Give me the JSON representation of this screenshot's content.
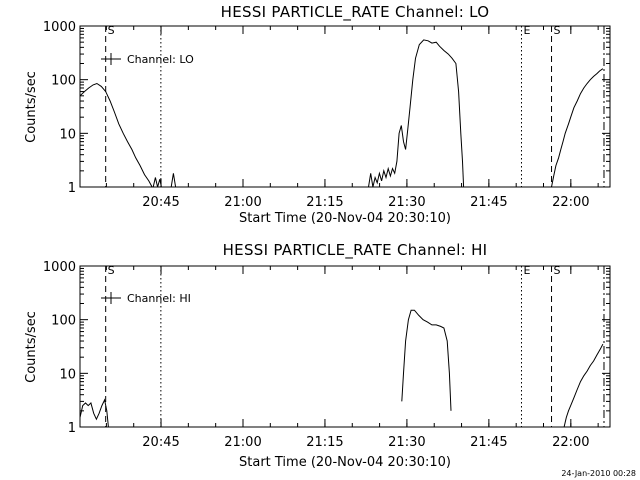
{
  "footer": {
    "date": "24-Jan-2010 00:28"
  },
  "chart_data": [
    {
      "type": "line",
      "title": "HESSI PARTICLE_RATE Channel: LO",
      "xlabel": "Start Time (20-Nov-04 20:30:10)",
      "ylabel": "Counts/sec",
      "yscale": "log",
      "ylim": [
        1,
        1000
      ],
      "xlim_minutes": [
        0,
        97
      ],
      "xticks": [
        {
          "label": "20:45",
          "min": 14.83
        },
        {
          "label": "21:00",
          "min": 29.83
        },
        {
          "label": "21:15",
          "min": 44.83
        },
        {
          "label": "21:30",
          "min": 59.83
        },
        {
          "label": "21:45",
          "min": 74.83
        },
        {
          "label": "22:00",
          "min": 89.83
        }
      ],
      "yticks": [
        {
          "label": "1",
          "value": 1
        },
        {
          "label": "10",
          "value": 10
        },
        {
          "label": "100",
          "value": 100
        },
        {
          "label": "1000",
          "value": 1000
        }
      ],
      "legend": "Channel: LO",
      "vlines": [
        {
          "min": 4.7,
          "style": "dashed",
          "label": "S"
        },
        {
          "min": 14.8,
          "style": "dotted",
          "label": ""
        },
        {
          "min": 80.8,
          "style": "dotted",
          "label": "E"
        },
        {
          "min": 86.3,
          "style": "dashed",
          "label": "S"
        },
        {
          "min": 95.9,
          "style": "dashdot",
          "label": ""
        }
      ],
      "segments": [
        [
          [
            0,
            50
          ],
          [
            0.8,
            60
          ],
          [
            1.6,
            70
          ],
          [
            2.4,
            80
          ],
          [
            3.1,
            85
          ],
          [
            3.9,
            75
          ],
          [
            4.7,
            60
          ],
          [
            5.5,
            40
          ],
          [
            6.3,
            25
          ],
          [
            7.1,
            15
          ],
          [
            7.9,
            10
          ],
          [
            8.7,
            7
          ],
          [
            9.5,
            5
          ],
          [
            10.2,
            3.5
          ],
          [
            11,
            2.5
          ],
          [
            11.8,
            1.7
          ],
          [
            12.6,
            1.3
          ],
          [
            13.2,
            1.0
          ]
        ],
        [
          [
            13.4,
            1.0
          ],
          [
            13.8,
            1.5
          ],
          [
            14.2,
            1.0
          ],
          [
            14.6,
            1.4
          ],
          [
            14.9,
            1.0
          ]
        ],
        [
          [
            16.7,
            1.0
          ],
          [
            17.1,
            1.8
          ],
          [
            17.5,
            1.0
          ]
        ],
        [
          [
            52.8,
            1.0
          ],
          [
            53.2,
            1.8
          ],
          [
            53.6,
            1.0
          ],
          [
            54.0,
            1.5
          ],
          [
            54.4,
            1.2
          ],
          [
            54.8,
            1.8
          ],
          [
            55.2,
            1.3
          ],
          [
            55.6,
            2.0
          ],
          [
            56.0,
            1.5
          ],
          [
            56.4,
            2.2
          ],
          [
            56.8,
            1.6
          ],
          [
            57.2,
            2.2
          ],
          [
            57.6,
            1.8
          ],
          [
            58.0,
            3.0
          ],
          [
            58.4,
            10
          ],
          [
            58.8,
            14
          ],
          [
            59.2,
            7
          ],
          [
            59.6,
            5
          ],
          [
            60.0,
            12
          ],
          [
            60.4,
            30
          ],
          [
            60.9,
            100
          ],
          [
            61.4,
            250
          ],
          [
            62.1,
            450
          ],
          [
            62.9,
            550
          ],
          [
            63.7,
            530
          ],
          [
            64.4,
            480
          ],
          [
            65.2,
            500
          ],
          [
            65.8,
            420
          ],
          [
            66.6,
            350
          ],
          [
            67.4,
            300
          ],
          [
            68.1,
            250
          ],
          [
            68.8,
            200
          ],
          [
            69.3,
            60
          ],
          [
            69.7,
            10
          ],
          [
            70.0,
            3
          ],
          [
            70.2,
            1.0
          ]
        ],
        [
          [
            86.3,
            1.0
          ],
          [
            86.7,
            1.6
          ],
          [
            87.1,
            2.5
          ],
          [
            87.6,
            3.5
          ],
          [
            88.0,
            5
          ],
          [
            88.4,
            7
          ],
          [
            88.8,
            10
          ],
          [
            89.4,
            15
          ],
          [
            89.8,
            20
          ],
          [
            90.4,
            30
          ],
          [
            91.0,
            40
          ],
          [
            91.6,
            55
          ],
          [
            92.2,
            70
          ],
          [
            92.8,
            85
          ],
          [
            93.4,
            100
          ],
          [
            94.0,
            115
          ],
          [
            94.6,
            130
          ],
          [
            95.1,
            145
          ],
          [
            95.7,
            160
          ]
        ]
      ]
    },
    {
      "type": "line",
      "title": "HESSI PARTICLE_RATE Channel: HI",
      "xlabel": "Start Time (20-Nov-04 20:30:10)",
      "ylabel": "Counts/sec",
      "yscale": "log",
      "ylim": [
        1,
        1000
      ],
      "xlim_minutes": [
        0,
        97
      ],
      "xticks": [
        {
          "label": "20:45",
          "min": 14.83
        },
        {
          "label": "21:00",
          "min": 29.83
        },
        {
          "label": "21:15",
          "min": 44.83
        },
        {
          "label": "21:30",
          "min": 59.83
        },
        {
          "label": "21:45",
          "min": 74.83
        },
        {
          "label": "22:00",
          "min": 89.83
        }
      ],
      "yticks": [
        {
          "label": "1",
          "value": 1
        },
        {
          "label": "10",
          "value": 10
        },
        {
          "label": "100",
          "value": 100
        },
        {
          "label": "1000",
          "value": 1000
        }
      ],
      "legend": "Channel: HI",
      "vlines": [
        {
          "min": 4.7,
          "style": "dashed",
          "label": "S"
        },
        {
          "min": 14.8,
          "style": "dotted",
          "label": ""
        },
        {
          "min": 80.8,
          "style": "dotted",
          "label": "E"
        },
        {
          "min": 86.3,
          "style": "dashed",
          "label": "S"
        },
        {
          "min": 95.9,
          "style": "dashdot",
          "label": ""
        }
      ],
      "segments": [
        [
          [
            0,
            1.5
          ],
          [
            0.5,
            2.5
          ],
          [
            1.0,
            2.8
          ],
          [
            1.5,
            2.5
          ],
          [
            2.0,
            2.8
          ],
          [
            2.5,
            1.8
          ],
          [
            3.0,
            1.4
          ],
          [
            3.5,
            1.8
          ],
          [
            4.0,
            2.5
          ],
          [
            4.5,
            3.2
          ],
          [
            4.9,
            2.0
          ],
          [
            5.2,
            1.0
          ]
        ],
        [
          [
            58.9,
            3
          ],
          [
            59.2,
            10
          ],
          [
            59.6,
            40
          ],
          [
            60.1,
            100
          ],
          [
            60.6,
            150
          ],
          [
            61.2,
            150
          ],
          [
            62.0,
            120
          ],
          [
            62.8,
            100
          ],
          [
            63.6,
            90
          ],
          [
            64.4,
            80
          ],
          [
            65.2,
            80
          ],
          [
            66.0,
            75
          ],
          [
            66.6,
            70
          ],
          [
            67.2,
            40
          ],
          [
            67.6,
            10
          ],
          [
            67.9,
            2
          ]
        ],
        [
          [
            88.6,
            1.0
          ],
          [
            89.0,
            1.5
          ],
          [
            89.4,
            2.0
          ],
          [
            89.8,
            2.5
          ],
          [
            90.4,
            3.5
          ],
          [
            91.0,
            5
          ],
          [
            91.6,
            7
          ],
          [
            92.2,
            9
          ],
          [
            92.8,
            11
          ],
          [
            93.4,
            14
          ],
          [
            94.0,
            17
          ],
          [
            94.6,
            22
          ],
          [
            95.2,
            28
          ],
          [
            95.7,
            35
          ]
        ]
      ]
    }
  ]
}
